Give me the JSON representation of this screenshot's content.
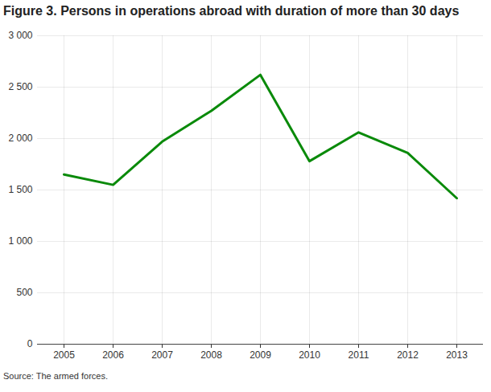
{
  "chart_data": {
    "type": "line",
    "title": "Figure 3. Persons in operations abroad with duration of more than 30 days",
    "caption": "Source: The armed forces.",
    "categories": [
      "2005",
      "2006",
      "2007",
      "2008",
      "2009",
      "2010",
      "2011",
      "2012",
      "2013"
    ],
    "values": [
      1650,
      1550,
      1970,
      2270,
      2620,
      1780,
      2060,
      1860,
      1420
    ],
    "color": "#0a8a0a",
    "ylim": [
      0,
      3000
    ],
    "yticks": [
      0,
      500,
      {
        "value": 1000,
        "label": "1 000"
      },
      {
        "value": 1500,
        "label": "1 500"
      },
      {
        "value": 2000,
        "label": "2 000"
      },
      {
        "value": 2500,
        "label": "2 500"
      },
      {
        "value": 3000,
        "label": "3 000"
      }
    ],
    "grid": true
  }
}
